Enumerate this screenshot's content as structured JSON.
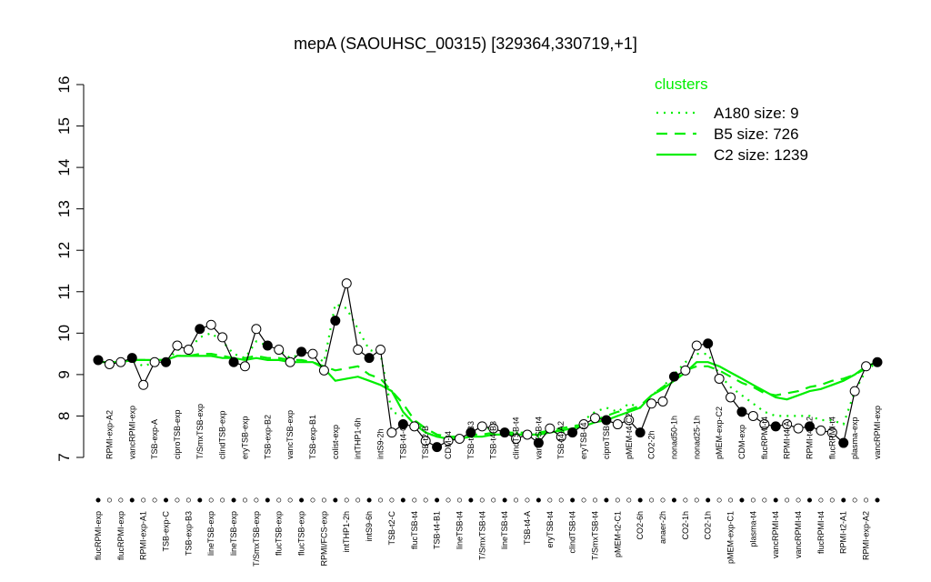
{
  "chart_data": {
    "type": "line",
    "title": "mepA (SAOUHSC_00315) [329364,330719,+1]",
    "ylim": [
      7,
      16
    ],
    "yticks": [
      7,
      8,
      9,
      10,
      11,
      12,
      13,
      14,
      15,
      16
    ],
    "categories": [
      "flucRPMI-exp",
      "RPMI-exp-A2",
      "flucRPMI-exp",
      "vancRPMI-exp",
      "RPMI-exp-A1",
      "TSB-exp-A",
      "TSB-exp-C",
      "ciproTSB-exp",
      "TSB-exp-B3",
      "T/SmxTSB-exp",
      "lineTSB-exp",
      "clindTSB-exp",
      "lineTSB-exp",
      "eryTSB-exp",
      "T/SmxTSB-exp",
      "TSB-exp-B2",
      "flucTSB-exp",
      "vancTSB-exp",
      "flucTSB-exp",
      "TSB-exp-B1",
      "RPMI/FCS-exp",
      "colist-exp",
      "intTHP1-2h",
      "intTHP1-6h",
      "intS9-6h",
      "intS9-2h",
      "TSB-t2-C",
      "TSB-t4-C",
      "flucTSB-t4",
      "TSB-t2-B",
      "TSB-t4-B1",
      "CDM-t4",
      "lineTSB-t4",
      "TSB-t4-B3",
      "T/SmxTSB-t4",
      "TSB-t4-B3",
      "lineTSB-t4",
      "clindTSB-t4",
      "TSB-t4-A",
      "vancTSB-t4",
      "eryTSB-t4",
      "TSB-t4-A2",
      "clindTSB-t4",
      "eryTSB-t4",
      "T/SmxTSB-t4",
      "ciproTSB-t4",
      "pMEM-t2-C1",
      "pMEM-t4-C2",
      "CO2-6h",
      "CO2-2h",
      "anaer-2h",
      "nonad50-1h",
      "CO2-1h",
      "nonad25-1h",
      "CO2-1h",
      "pMEM-exp-C2",
      "pMEM-exp-C1",
      "CDM-exp",
      "plasma-t4",
      "flucRPMI-t4",
      "vancRPMI-t4",
      "RPMI-t4-A",
      "vancRPMI-t4",
      "RPMI-t4-A2",
      "flucRPMI-t4",
      "flucRPMI-t4",
      "RPMI-t2-A1",
      "plasma-exp",
      "RPMI-exp-A2",
      "vancRPMI-exp"
    ],
    "values": [
      9.35,
      9.25,
      9.3,
      9.4,
      8.75,
      9.3,
      9.3,
      9.7,
      9.6,
      10.1,
      10.2,
      9.9,
      9.3,
      9.2,
      10.1,
      9.7,
      9.6,
      9.3,
      9.55,
      9.5,
      9.1,
      10.3,
      11.2,
      9.6,
      9.4,
      9.6,
      7.6,
      7.8,
      7.75,
      7.4,
      7.25,
      7.4,
      7.45,
      7.6,
      7.75,
      7.7,
      7.6,
      7.45,
      7.55,
      7.35,
      7.7,
      7.5,
      7.6,
      7.8,
      7.95,
      7.9,
      7.8,
      7.9,
      7.6,
      8.3,
      8.35,
      8.95,
      9.1,
      9.7,
      9.75,
      8.9,
      8.45,
      8.1,
      8.0,
      7.8,
      7.75,
      7.8,
      7.7,
      7.75,
      7.65,
      7.6,
      7.35,
      8.6,
      9.2,
      9.3
    ],
    "color": "#000000",
    "legend_title": "clusters",
    "series": [
      {
        "name": "A180 size: 9",
        "color": "#00ee00",
        "dash": "dotted",
        "values": [
          9.3,
          9.3,
          9.3,
          9.35,
          9.2,
          9.3,
          9.3,
          9.6,
          9.6,
          9.9,
          10.0,
          9.8,
          9.5,
          9.4,
          9.8,
          9.7,
          9.6,
          9.4,
          9.5,
          9.5,
          9.3,
          10.7,
          10.6,
          10.1,
          9.6,
          9.5,
          8.1,
          8.0,
          7.9,
          7.6,
          7.5,
          7.5,
          7.5,
          7.6,
          7.7,
          7.7,
          7.6,
          7.6,
          7.6,
          7.5,
          7.7,
          7.6,
          7.7,
          7.9,
          8.1,
          8.2,
          8.1,
          8.3,
          8.2,
          8.5,
          8.7,
          9.0,
          9.3,
          9.5,
          9.5,
          9.0,
          8.7,
          8.5,
          8.3,
          8.1,
          8.0,
          8.0,
          8.0,
          8.0,
          7.9,
          7.9,
          7.8,
          8.6,
          9.1,
          9.3
        ]
      },
      {
        "name": "B5 size: 726",
        "color": "#00ee00",
        "dash": "dashed",
        "values": [
          9.3,
          9.3,
          9.3,
          9.35,
          9.35,
          9.35,
          9.35,
          9.45,
          9.45,
          9.5,
          9.5,
          9.45,
          9.4,
          9.4,
          9.45,
          9.4,
          9.4,
          9.35,
          9.35,
          9.3,
          9.2,
          9.1,
          9.15,
          9.2,
          9.0,
          8.9,
          8.6,
          8.3,
          7.9,
          7.7,
          7.55,
          7.5,
          7.5,
          7.55,
          7.55,
          7.6,
          7.6,
          7.6,
          7.6,
          7.6,
          7.65,
          7.7,
          7.75,
          7.8,
          7.9,
          8.0,
          8.1,
          8.15,
          8.25,
          8.5,
          8.7,
          8.9,
          9.1,
          9.2,
          9.2,
          9.1,
          8.95,
          8.8,
          8.7,
          8.55,
          8.5,
          8.55,
          8.6,
          8.7,
          8.75,
          8.85,
          8.9,
          9.0,
          9.15,
          9.25
        ]
      },
      {
        "name": "C2 size: 1239",
        "color": "#00ee00",
        "dash": "solid",
        "values": [
          9.3,
          9.3,
          9.3,
          9.35,
          9.35,
          9.35,
          9.35,
          9.45,
          9.45,
          9.45,
          9.45,
          9.4,
          9.4,
          9.35,
          9.4,
          9.35,
          9.35,
          9.3,
          9.3,
          9.3,
          9.15,
          8.85,
          8.9,
          8.95,
          8.85,
          8.75,
          8.6,
          8.1,
          7.8,
          7.6,
          7.5,
          7.45,
          7.45,
          7.5,
          7.5,
          7.55,
          7.55,
          7.55,
          7.55,
          7.55,
          7.6,
          7.65,
          7.7,
          7.75,
          7.85,
          7.9,
          8.0,
          8.1,
          8.2,
          8.5,
          8.65,
          8.85,
          9.05,
          9.3,
          9.3,
          9.2,
          9.05,
          8.9,
          8.75,
          8.6,
          8.45,
          8.4,
          8.5,
          8.6,
          8.65,
          8.75,
          8.85,
          9.0,
          9.2,
          9.3
        ]
      }
    ]
  }
}
